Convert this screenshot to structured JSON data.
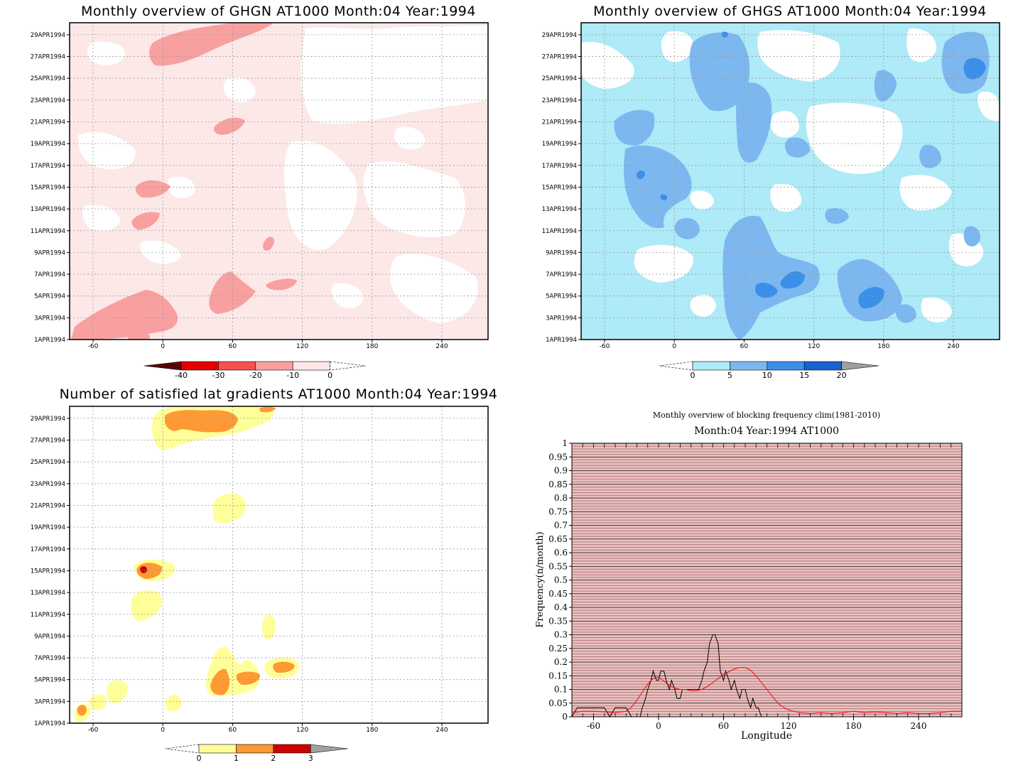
{
  "chart_data": [
    {
      "type": "heatmap",
      "title": "Monthly overview of GHGN AT1000 Month:04 Year:1994",
      "x_ticks": [
        "-60",
        "0",
        "60",
        "120",
        "180",
        "240"
      ],
      "x_tick_values": [
        -60,
        0,
        60,
        120,
        180,
        240
      ],
      "y_ticks": [
        "1APR1994",
        "3APR1994",
        "5APR1994",
        "7APR1994",
        "9APR1994",
        "11APR1994",
        "13APR1994",
        "15APR1994",
        "17APR1994",
        "19APR1994",
        "21APR1994",
        "23APR1994",
        "25APR1994",
        "27APR1994",
        "29APR1994"
      ],
      "colorbar": {
        "labels": [
          "-40",
          "-30",
          "-20",
          "-10",
          "0"
        ],
        "colors": [
          "#5a0000",
          "#e50000",
          "#f55050",
          "#f8a0a0",
          "#fde6e6"
        ]
      },
      "grid": true
    },
    {
      "type": "heatmap",
      "title": "Monthly overview of GHGS AT1000 Month:04 Year:1994",
      "x_ticks": [
        "-60",
        "0",
        "60",
        "120",
        "180",
        "240"
      ],
      "x_tick_values": [
        -60,
        0,
        60,
        120,
        180,
        240
      ],
      "y_ticks": [
        "1APR1994",
        "3APR1994",
        "5APR1994",
        "7APR1994",
        "9APR1994",
        "11APR1994",
        "13APR1994",
        "15APR1994",
        "17APR1994",
        "19APR1994",
        "21APR1994",
        "23APR1994",
        "25APR1994",
        "27APR1994",
        "29APR1994"
      ],
      "colorbar": {
        "labels": [
          "0",
          "5",
          "10",
          "15",
          "20"
        ],
        "colors": [
          "#aeeaf7",
          "#7db7f0",
          "#3b8fe8",
          "#1a62d0",
          "#a0a0a0"
        ]
      },
      "grid": true
    },
    {
      "type": "heatmap",
      "title": "Number of satisfied lat gradients AT1000 Month:04 Year:1994",
      "x_ticks": [
        "-60",
        "0",
        "60",
        "120",
        "180",
        "240"
      ],
      "x_tick_values": [
        -60,
        0,
        60,
        120,
        180,
        240
      ],
      "y_ticks": [
        "1APR1994",
        "3APR1994",
        "5APR1994",
        "7APR1994",
        "9APR1994",
        "11APR1994",
        "13APR1994",
        "15APR1994",
        "17APR1994",
        "19APR1994",
        "21APR1994",
        "23APR1994",
        "25APR1994",
        "27APR1994",
        "29APR1994"
      ],
      "colorbar": {
        "labels": [
          "0",
          "1",
          "2",
          "3"
        ],
        "colors": [
          "#ffff99",
          "#ff9933",
          "#cc0000",
          "#a0a0a0"
        ]
      },
      "grid": true
    },
    {
      "type": "line",
      "title": "Monthly overview of blocking frequency clim(1981-2010)",
      "subtitle": "Month:04 Year:1994  AT1000",
      "xlabel": "Longitude",
      "ylabel": "Frequency(n/month)",
      "x_ticks": [
        "-60",
        "0",
        "60",
        "120",
        "180",
        "240"
      ],
      "x_tick_values": [
        -60,
        0,
        60,
        120,
        180,
        240
      ],
      "y_ticks": [
        "0",
        "0.05",
        "0.1",
        "0.15",
        "0.2",
        "0.25",
        "0.3",
        "0.35",
        "0.4",
        "0.45",
        "0.5",
        "0.55",
        "0.6",
        "0.65",
        "0.7",
        "0.75",
        "0.8",
        "0.85",
        "0.9",
        "0.95",
        "1"
      ],
      "xlim": [
        -80,
        280
      ],
      "ylim": [
        0,
        1
      ],
      "series": [
        {
          "color": "#000000",
          "x": [
            -80,
            -75,
            -70,
            -65,
            -60,
            -55,
            -50,
            -45,
            -40,
            -35,
            -30,
            -25,
            -20,
            -17,
            -15,
            -12,
            -10,
            -7,
            -5,
            -2,
            0,
            2,
            5,
            7,
            10,
            12,
            15,
            17,
            20,
            22,
            25,
            27,
            30,
            32,
            35,
            37,
            40,
            42,
            45,
            47,
            50,
            52,
            55,
            57,
            60,
            62,
            65,
            67,
            70,
            72,
            75,
            77,
            80,
            82,
            85,
            87,
            90,
            92,
            95,
            97,
            100,
            102,
            105,
            107,
            110,
            115,
            120,
            125,
            130,
            140,
            150,
            160,
            170,
            180,
            190,
            200,
            210,
            220,
            230,
            240,
            250,
            260,
            270,
            280
          ],
          "y": [
            0,
            0.033,
            0.033,
            0.033,
            0.033,
            0.033,
            0.033,
            0,
            0.033,
            0.033,
            0.033,
            0,
            0,
            0,
            0.033,
            0.067,
            0.1,
            0.133,
            0.167,
            0.133,
            0.133,
            0.167,
            0.167,
            0.133,
            0.1,
            0.133,
            0.1,
            0.067,
            0.067,
            0.1,
            0.1,
            0.1,
            0.1,
            0.1,
            0.1,
            0.1,
            0.133,
            0.167,
            0.2,
            0.267,
            0.3,
            0.3,
            0.267,
            0.167,
            0.133,
            0.167,
            0.133,
            0.1,
            0.133,
            0.1,
            0.067,
            0.1,
            0.1,
            0.067,
            0.033,
            0.067,
            0.033,
            0.033,
            0,
            0,
            0,
            0,
            0,
            0,
            0,
            0,
            0,
            0,
            0,
            0,
            0,
            0,
            0,
            0,
            0,
            0,
            0,
            0,
            0,
            0,
            0,
            0,
            0,
            0
          ]
        },
        {
          "color": "#ff0000",
          "x": [
            -80,
            -70,
            -60,
            -50,
            -40,
            -30,
            -25,
            -20,
            -15,
            -10,
            -5,
            0,
            5,
            10,
            15,
            20,
            25,
            30,
            35,
            40,
            45,
            50,
            55,
            60,
            65,
            70,
            75,
            80,
            85,
            90,
            95,
            100,
            105,
            110,
            115,
            120,
            125,
            130,
            140,
            150,
            160,
            170,
            180,
            190,
            200,
            210,
            220,
            230,
            240,
            250,
            260,
            270,
            280
          ],
          "y": [
            0.015,
            0.02,
            0.02,
            0.018,
            0.015,
            0.02,
            0.035,
            0.06,
            0.09,
            0.12,
            0.14,
            0.145,
            0.13,
            0.115,
            0.105,
            0.1,
            0.1,
            0.095,
            0.095,
            0.1,
            0.11,
            0.125,
            0.14,
            0.155,
            0.165,
            0.175,
            0.18,
            0.18,
            0.17,
            0.15,
            0.125,
            0.1,
            0.075,
            0.05,
            0.035,
            0.025,
            0.02,
            0.015,
            0.012,
            0.015,
            0.012,
            0.015,
            0.02,
            0.015,
            0.018,
            0.015,
            0.012,
            0.015,
            0.012,
            0.012,
            0.015,
            0.02,
            0.02
          ]
        }
      ]
    }
  ]
}
